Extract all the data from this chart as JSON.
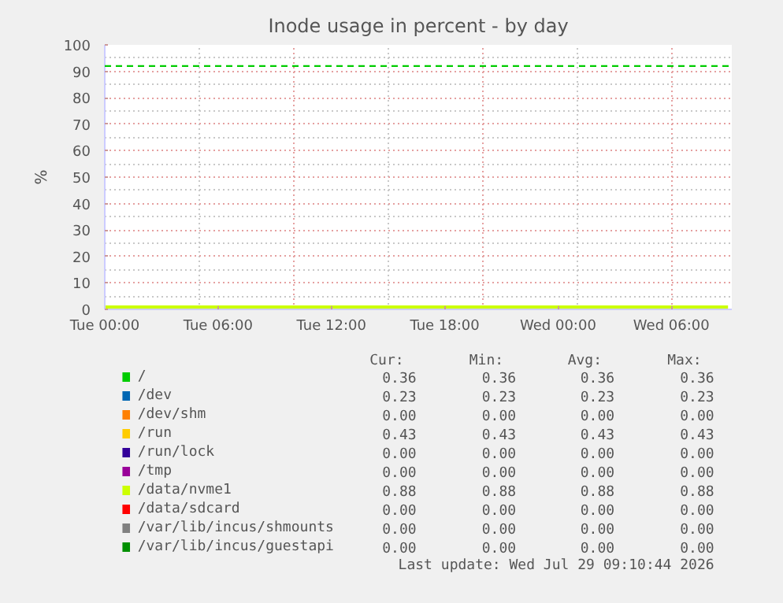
{
  "chart_data": {
    "type": "line",
    "title": "Inode usage in percent - by day",
    "ylabel": "%",
    "categories": [
      "Tue 00:00",
      null,
      null,
      null,
      null,
      null,
      "Tue 06:00",
      null,
      null,
      null,
      null,
      null,
      "Tue 12:00",
      null,
      null,
      null,
      null,
      null,
      "Tue 18:00",
      null,
      null,
      null,
      null,
      null,
      "Wed 00:00",
      null,
      null,
      null,
      null,
      null,
      "Wed 06:00",
      null,
      null,
      null
    ],
    "ylim": [
      0,
      100
    ],
    "yticks": [
      0,
      10,
      20,
      30,
      40,
      50,
      60,
      70,
      80,
      90,
      100
    ],
    "grid": true,
    "legend": "bottom",
    "line_style": "solid",
    "series": [
      {
        "name": "/",
        "color": "#00cc00",
        "values": [
          null,
          null,
          null,
          null,
          null,
          null,
          null,
          null,
          null,
          null,
          null,
          null,
          null,
          null,
          null,
          null,
          null,
          null,
          null,
          null,
          null,
          null,
          null,
          null,
          null,
          null,
          null,
          null,
          null,
          null,
          null,
          null,
          null,
          null
        ]
      },
      {
        "name": "/dev",
        "color": "#0066b3",
        "values": [
          null,
          null,
          null,
          null,
          null,
          null,
          null,
          null,
          null,
          null,
          null,
          null,
          null,
          null,
          null,
          null,
          null,
          null,
          null,
          null,
          null,
          null,
          null,
          null,
          null,
          null,
          null,
          null,
          null,
          null,
          null,
          null,
          null,
          null
        ]
      },
      {
        "name": "/dev/shm",
        "color": "#ff8000",
        "values": [
          null,
          null,
          null,
          null,
          null,
          null,
          null,
          null,
          null,
          null,
          null,
          null,
          null,
          null,
          null,
          null,
          null,
          null,
          null,
          null,
          null,
          null,
          null,
          null,
          null,
          null,
          null,
          null,
          null,
          null,
          null,
          null,
          null,
          null
        ]
      },
      {
        "name": "/run",
        "color": "#ffcc00",
        "values": [
          null,
          null,
          null,
          null,
          null,
          null,
          null,
          null,
          null,
          null,
          null,
          null,
          null,
          null,
          null,
          null,
          null,
          null,
          null,
          null,
          null,
          null,
          null,
          null,
          null,
          null,
          null,
          null,
          null,
          null,
          null,
          null,
          null,
          null
        ]
      },
      {
        "name": "/run/lock",
        "color": "#330099",
        "values": [
          null,
          null,
          null,
          null,
          null,
          null,
          null,
          null,
          null,
          null,
          null,
          null,
          null,
          null,
          null,
          null,
          null,
          null,
          null,
          null,
          null,
          null,
          null,
          null,
          null,
          null,
          null,
          null,
          null,
          null,
          null,
          null,
          null,
          null
        ]
      },
      {
        "name": "/tmp",
        "color": "#990099",
        "values": [
          null,
          null,
          null,
          null,
          null,
          null,
          null,
          null,
          null,
          null,
          null,
          null,
          null,
          null,
          null,
          null,
          null,
          null,
          null,
          null,
          null,
          null,
          null,
          null,
          null,
          null,
          null,
          null,
          null,
          null,
          null,
          null,
          null,
          null
        ]
      },
      {
        "name": "/data/nvme1",
        "color": "#ccff00",
        "values": [
          0.88,
          0.88,
          0.88,
          0.88,
          0.88,
          0.88,
          0.88,
          0.88,
          0.88,
          0.88,
          0.88,
          0.88,
          0.88,
          0.88,
          0.88,
          0.88,
          0.88,
          0.88,
          0.88,
          0.88,
          0.88,
          0.88,
          0.88,
          0.88,
          0.88,
          0.88,
          0.88,
          0.88,
          0.88,
          0.88,
          0.88,
          0.88,
          0.88,
          0.88
        ]
      },
      {
        "name": "/data/sdcard",
        "color": "#ff0000",
        "values": [
          null,
          null,
          null,
          null,
          null,
          null,
          null,
          null,
          null,
          null,
          null,
          null,
          null,
          null,
          null,
          null,
          null,
          null,
          null,
          null,
          null,
          null,
          null,
          null,
          null,
          null,
          null,
          null,
          null,
          null,
          null,
          null,
          null,
          null
        ]
      },
      {
        "name": "/var/lib/incus/shmounts",
        "color": "#808080",
        "values": [
          null,
          null,
          null,
          null,
          null,
          null,
          null,
          null,
          null,
          null,
          null,
          null,
          null,
          null,
          null,
          null,
          null,
          null,
          null,
          null,
          null,
          null,
          null,
          null,
          null,
          null,
          null,
          null,
          null,
          null,
          null,
          null,
          null,
          null
        ]
      },
      {
        "name": "/var/lib/incus/guestapi",
        "color": "#008f00",
        "values": [
          null,
          null,
          null,
          null,
          null,
          null,
          null,
          null,
          null,
          null,
          null,
          null,
          null,
          null,
          null,
          null,
          null,
          null,
          null,
          null,
          null,
          null,
          null,
          null,
          null,
          null,
          null,
          null,
          null,
          null,
          null,
          null,
          null,
          null
        ]
      }
    ],
    "ref_lines": [
      {
        "axis": "y",
        "value": 92,
        "color": "#00cc00",
        "line_style": "dashed"
      }
    ],
    "annotations": [
      "Cur:",
      "Min:",
      "Avg:",
      "Max:",
      "0.36",
      "0.36",
      "0.36",
      "0.36",
      "0.23",
      "0.23",
      "0.23",
      "0.23",
      "0.00",
      "0.00",
      "0.00",
      "0.00",
      "0.43",
      "0.43",
      "0.43",
      "0.43",
      "0.00",
      "0.00",
      "0.00",
      "0.00",
      "0.00",
      "0.00",
      "0.00",
      "0.00",
      "0.88",
      "0.88",
      "0.88",
      "0.88",
      "0.00",
      "0.00",
      "0.00",
      "0.00",
      "0.00",
      "0.00",
      "0.00",
      "0.00",
      "0.00",
      "0.00",
      "0.00",
      "0.00",
      "Last update: Wed Jul 29 09:10:44 2026"
    ]
  }
}
